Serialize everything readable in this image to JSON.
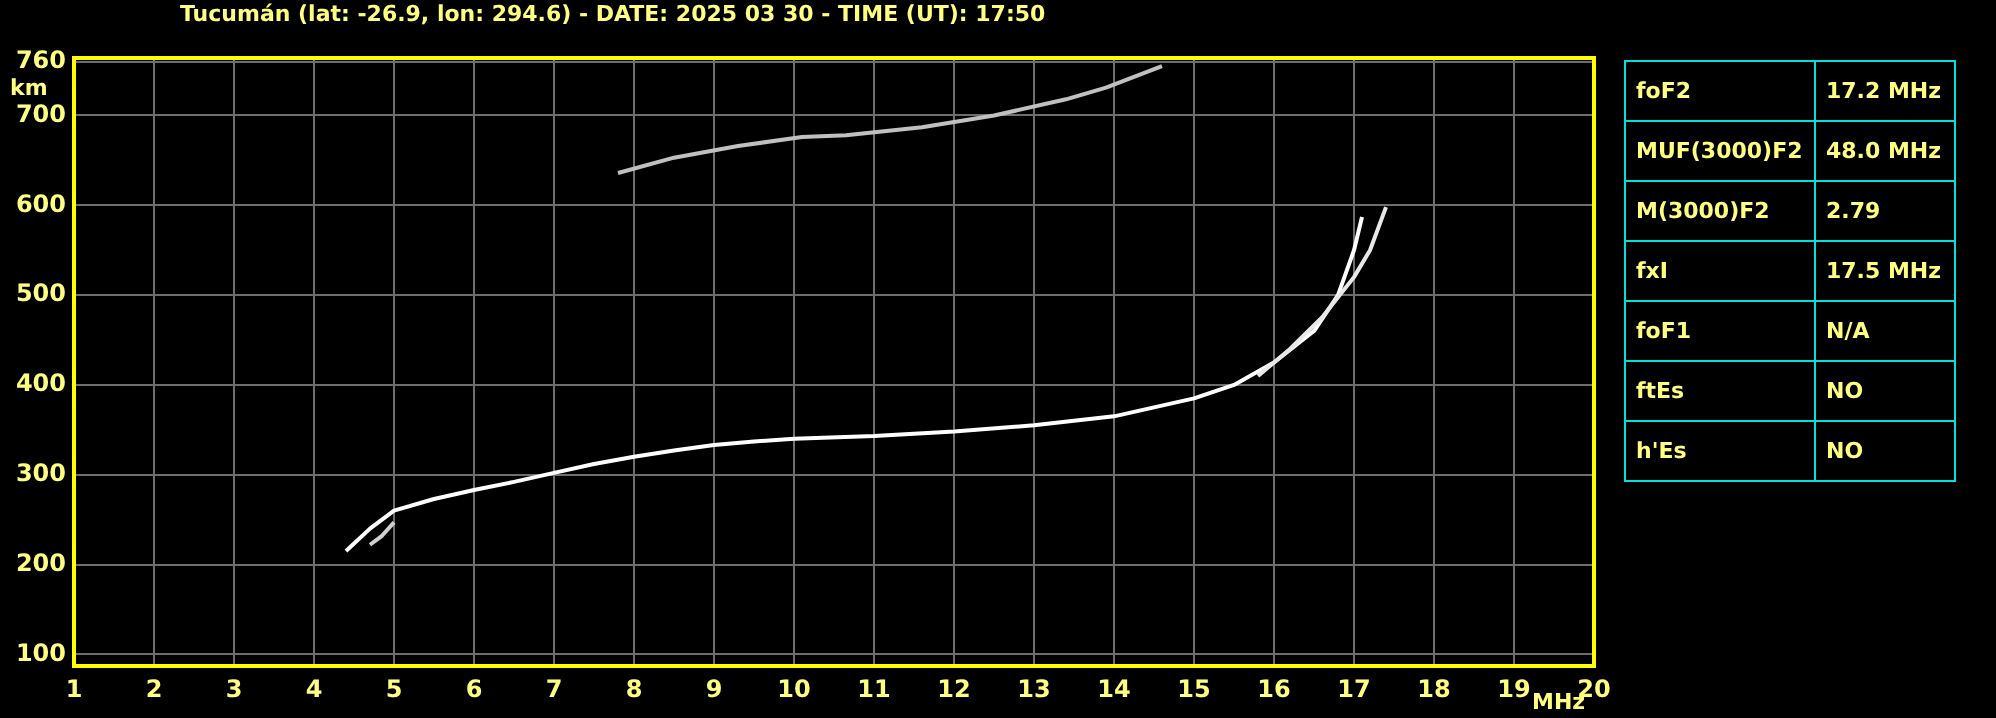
{
  "chart_data": [
    {
      "type": "line",
      "title": "Tucumán (lat: -26.9, lon: 294.6) - DATE: 2025 03 30 - TIME (UT): 17:50",
      "xlabel": "MHz",
      "ylabel": "km",
      "xlim": [
        1,
        20
      ],
      "xticks": [
        1,
        2,
        3,
        4,
        5,
        6,
        7,
        8,
        9,
        10,
        11,
        12,
        13,
        14,
        15,
        16,
        17,
        18,
        19,
        20
      ],
      "ylim": [
        87,
        764
      ],
      "yticks": [
        100,
        200,
        300,
        400,
        500,
        600,
        700,
        760
      ],
      "grid": true,
      "marker": "none",
      "line_style": "solid",
      "series": [
        {
          "color": "#ffffff",
          "x": [
            4.4,
            4.7,
            5.0,
            5.5,
            6.0,
            6.5,
            7.0,
            7.5,
            8.0,
            8.5,
            9.0,
            9.5,
            10.0,
            11.0,
            12.0,
            13.0,
            14.0,
            15.0,
            15.5,
            16.0,
            16.5,
            16.8,
            17.0,
            17.1
          ],
          "values": [
            215,
            240,
            260,
            273,
            283,
            292,
            302,
            312,
            320,
            327,
            333,
            337,
            340,
            343,
            348,
            355,
            365,
            385,
            400,
            425,
            460,
            500,
            550,
            587
          ]
        },
        {
          "color": "#e8e8e8",
          "x": [
            15.8,
            16.2,
            16.6,
            17.0,
            17.2,
            17.4
          ],
          "values": [
            410,
            440,
            475,
            520,
            550,
            598
          ]
        },
        {
          "color": "#d0d0d0",
          "x": [
            4.7,
            4.85,
            5.0
          ],
          "values": [
            222,
            232,
            247
          ]
        },
        {
          "color": "#c0c0c0",
          "x": [
            7.8,
            8.5,
            9.3,
            10.1,
            10.65,
            11.6,
            12.5,
            13.4,
            13.9,
            14.6
          ],
          "values": [
            636,
            653,
            666,
            676,
            678,
            687,
            700,
            718,
            731,
            755
          ]
        }
      ]
    },
    {
      "type": "other",
      "annotations": [
        "foF2",
        "17.2 MHz",
        "MUF(3000)F2",
        "48.0 MHz",
        "M(3000)F2",
        "2.79",
        "fxI",
        "17.5 MHz",
        "foF1",
        "N/A",
        "ftEs",
        "NO",
        "h'Es",
        "NO"
      ]
    }
  ]
}
